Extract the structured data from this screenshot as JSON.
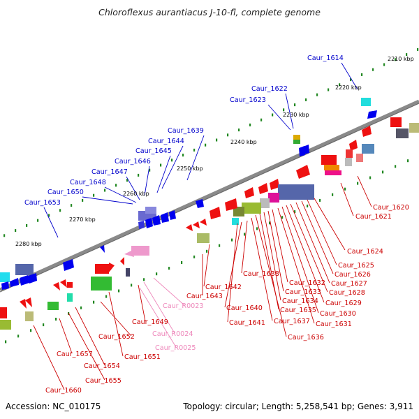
{
  "title": "Chloroflexus aurantiacus J-10-fl, complete genome",
  "accession": "Accession: NC_010175",
  "summary": "Topology: circular; Length: 5,258,541 bp; Genes: 3,911",
  "colors": {
    "upper_label": "#0000cc",
    "lower_label": "#cc0000",
    "rna_label": "#ee88bb",
    "backbone": "#8a8a8a",
    "tick": "#228822"
  },
  "kbp_marks": [
    "2210 kbp",
    "2220 kbp",
    "2230 kbp",
    "2240 kbp",
    "2250 kbp",
    "2260 kbp",
    "2270 kbp",
    "2280 kbp"
  ],
  "upper_labels": [
    "Caur_1614",
    "Caur_1622",
    "Caur_1623",
    "Caur_1639",
    "Caur_1644",
    "Caur_1645",
    "Caur_1646",
    "Caur_1647",
    "Caur_1648",
    "Caur_1650",
    "Caur_1653"
  ],
  "lower_labels": [
    "Caur_1620",
    "Caur_1621",
    "Caur_1624",
    "Caur_1625",
    "Caur_1626",
    "Caur_1627",
    "Caur_1628",
    "Caur_1629",
    "Caur_1630",
    "Caur_1631",
    "Caur_1632",
    "Caur_1633",
    "Caur_1634",
    "Caur_1635",
    "Caur_1636",
    "Caur_1637",
    "Caur_1638",
    "Caur_1640",
    "Caur_1641",
    "Caur_1642",
    "Caur_1643",
    "Caur_1649",
    "Caur_1651",
    "Caur_1652",
    "Caur_1654",
    "Caur_1655",
    "Caur_1657",
    "Caur_1660"
  ],
  "rna_labels": [
    "Caur_R0023",
    "Caur_R0024",
    "Caur_R0025"
  ]
}
